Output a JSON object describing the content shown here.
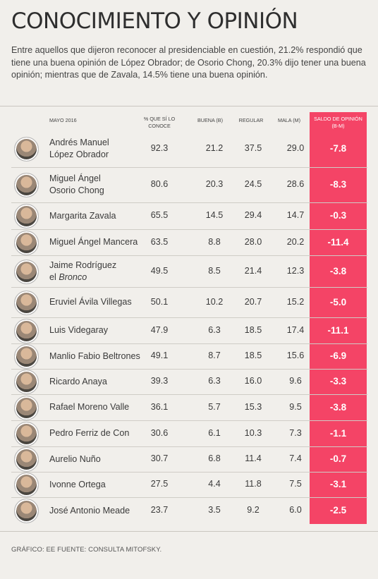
{
  "title": "CONOCIMIENTO Y OPINIÓN",
  "intro": "Entre aquellos que dijeron reconocer al presidenciable en cuestión, 21.2% respondió que tiene una buena opinión de López Obrador; de Osorio Chong, 20.3% dijo tener una buena opinión; mientras que de Zavala, 14.5% tiene una buena opinión.",
  "footer": "GRÁFICO: EE FUENTE: CONSULTA MITOFSKY.",
  "colors": {
    "saldo_bg": "#f44466",
    "background": "#f1efeb"
  },
  "chart_data": {
    "type": "table",
    "columns": {
      "period": "MAYO 2016",
      "conoce": "% QUE SÍ LO CONOCE",
      "buena": "BUENA (B)",
      "regular": "REGULAR",
      "mala": "MALA (M)",
      "saldo": "SALDO DE OPINIÓN (B-M)"
    },
    "rows": [
      {
        "name": "Andrés Manuel",
        "name2": "López Obrador",
        "name2_italic": false,
        "conoce": "92.3",
        "buena": "21.2",
        "regular": "37.5",
        "mala": "29.0",
        "saldo": "-7.8"
      },
      {
        "name": "Miguel Ángel",
        "name2": "Osorio Chong",
        "name2_italic": false,
        "conoce": "80.6",
        "buena": "20.3",
        "regular": "24.5",
        "mala": "28.6",
        "saldo": "-8.3"
      },
      {
        "name": "Margarita Zavala",
        "name2": "",
        "conoce": "65.5",
        "buena": "14.5",
        "regular": "29.4",
        "mala": "14.7",
        "saldo": "-0.3"
      },
      {
        "name": "Miguel Ángel Mancera",
        "name2": "",
        "conoce": "63.5",
        "buena": "8.8",
        "regular": "28.0",
        "mala": "20.2",
        "saldo": "-11.4"
      },
      {
        "name": "Jaime Rodríguez",
        "name2_prefix": "el ",
        "name2": "Bronco",
        "name2_italic": true,
        "conoce": "49.5",
        "buena": "8.5",
        "regular": "21.4",
        "mala": "12.3",
        "saldo": "-3.8"
      },
      {
        "name": "Eruviel Ávila Villegas",
        "name2": "",
        "conoce": "50.1",
        "buena": "10.2",
        "regular": "20.7",
        "mala": "15.2",
        "saldo": "-5.0"
      },
      {
        "name": "Luis Videgaray",
        "name2": "",
        "conoce": "47.9",
        "buena": "6.3",
        "regular": "18.5",
        "mala": "17.4",
        "saldo": "-11.1"
      },
      {
        "name": "Manlio Fabio Beltrones",
        "name2": "",
        "conoce": "49.1",
        "buena": "8.7",
        "regular": "18.5",
        "mala": "15.6",
        "saldo": "-6.9"
      },
      {
        "name": "Ricardo Anaya",
        "name2": "",
        "conoce": "39.3",
        "buena": "6.3",
        "regular": "16.0",
        "mala": "9.6",
        "saldo": "-3.3"
      },
      {
        "name": "Rafael Moreno Valle",
        "name2": "",
        "conoce": "36.1",
        "buena": "5.7",
        "regular": "15.3",
        "mala": "9.5",
        "saldo": "-3.8"
      },
      {
        "name": "Pedro Ferriz de Con",
        "name2": "",
        "conoce": "30.6",
        "buena": "6.1",
        "regular": "10.3",
        "mala": "7.3",
        "saldo": "-1.1"
      },
      {
        "name": "Aurelio Nuño",
        "name2": "",
        "conoce": "30.7",
        "buena": "6.8",
        "regular": "11.4",
        "mala": "7.4",
        "saldo": "-0.7"
      },
      {
        "name": "Ivonne Ortega",
        "name2": "",
        "conoce": "27.5",
        "buena": "4.4",
        "regular": "11.8",
        "mala": "7.5",
        "saldo": "-3.1"
      },
      {
        "name": "José Antonio Meade",
        "name2": "",
        "conoce": "23.7",
        "buena": "3.5",
        "regular": "9.2",
        "mala": "6.0",
        "saldo": "-2.5"
      }
    ]
  }
}
